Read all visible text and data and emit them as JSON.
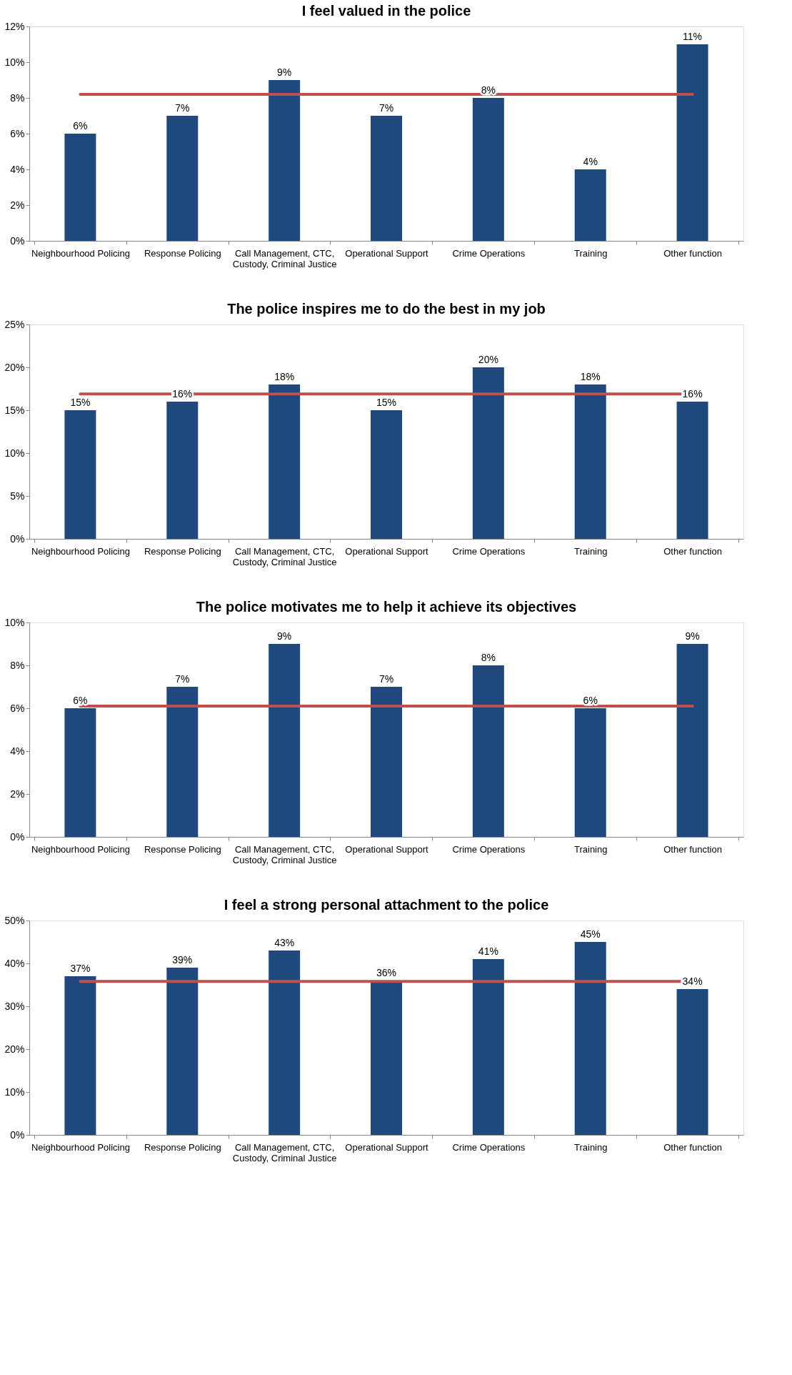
{
  "chart_data": [
    {
      "type": "bar",
      "title": "I feel valued in the police",
      "categories": [
        "Neighbourhood Policing",
        "Response Policing",
        "Call Management, CTC, Custody, Criminal Justice",
        "Operational Support",
        "Crime Operations",
        "Training",
        "Other function"
      ],
      "values": [
        6,
        7,
        9,
        7,
        8,
        4,
        11
      ],
      "value_labels": [
        "6%",
        "7%",
        "9%",
        "7%",
        "8%",
        "4%",
        "11%"
      ],
      "color": "#1f497d",
      "ylim": [
        0,
        12
      ],
      "yticks": [
        {
          "value": 0,
          "label": "0%"
        },
        {
          "value": 2,
          "label": "2%"
        },
        {
          "value": 4,
          "label": "4%"
        },
        {
          "value": 6,
          "label": "6%"
        },
        {
          "value": 8,
          "label": "8%"
        },
        {
          "value": 10,
          "label": "10%"
        },
        {
          "value": 12,
          "label": "12%"
        }
      ],
      "ref_lines": [
        {
          "axis": "y",
          "value": 8.2,
          "color": "#c0504d"
        }
      ],
      "grid": false
    },
    {
      "type": "bar",
      "title": "The police inspires me to do the best in my job",
      "categories": [
        "Neighbourhood Policing",
        "Response Policing",
        "Call Management, CTC, Custody, Criminal Justice",
        "Operational Support",
        "Crime Operations",
        "Training",
        "Other function"
      ],
      "values": [
        15,
        16,
        18,
        15,
        20,
        18,
        16
      ],
      "value_labels": [
        "15%",
        "16%",
        "18%",
        "15%",
        "20%",
        "18%",
        "16%"
      ],
      "color": "#1f497d",
      "ylim": [
        0,
        25
      ],
      "yticks": [
        {
          "value": 0,
          "label": "0%"
        },
        {
          "value": 5,
          "label": "5%"
        },
        {
          "value": 10,
          "label": "10%"
        },
        {
          "value": 15,
          "label": "15%"
        },
        {
          "value": 20,
          "label": "20%"
        },
        {
          "value": 25,
          "label": "25%"
        }
      ],
      "ref_lines": [
        {
          "axis": "y",
          "value": 16.9,
          "color": "#c0504d"
        }
      ],
      "grid": false
    },
    {
      "type": "bar",
      "title": "The police motivates me to help it achieve its objectives",
      "categories": [
        "Neighbourhood Policing",
        "Response Policing",
        "Call Management, CTC, Custody, Criminal Justice",
        "Operational Support",
        "Crime Operations",
        "Training",
        "Other function"
      ],
      "values": [
        6,
        7,
        9,
        7,
        8,
        6,
        9
      ],
      "value_labels": [
        "6%",
        "7%",
        "9%",
        "7%",
        "8%",
        "6%",
        "9%"
      ],
      "color": "#1f497d",
      "ylim": [
        0,
        10
      ],
      "yticks": [
        {
          "value": 0,
          "label": "0%"
        },
        {
          "value": 2,
          "label": "2%"
        },
        {
          "value": 4,
          "label": "4%"
        },
        {
          "value": 6,
          "label": "6%"
        },
        {
          "value": 8,
          "label": "8%"
        },
        {
          "value": 10,
          "label": "10%"
        }
      ],
      "ref_lines": [
        {
          "axis": "y",
          "value": 6.1,
          "color": "#c0504d"
        }
      ],
      "grid": false
    },
    {
      "type": "bar",
      "title": "I feel a strong personal attachment to the police",
      "categories": [
        "Neighbourhood Policing",
        "Response Policing",
        "Call Management, CTC, Custody, Criminal Justice",
        "Operational Support",
        "Crime Operations",
        "Training",
        "Other function"
      ],
      "values": [
        37,
        39,
        43,
        36,
        41,
        45,
        34
      ],
      "value_labels": [
        "37%",
        "39%",
        "43%",
        "36%",
        "41%",
        "45%",
        "34%"
      ],
      "color": "#1f497d",
      "ylim": [
        0,
        50
      ],
      "yticks": [
        {
          "value": 0,
          "label": "0%"
        },
        {
          "value": 10,
          "label": "10%"
        },
        {
          "value": 20,
          "label": "20%"
        },
        {
          "value": 30,
          "label": "30%"
        },
        {
          "value": 40,
          "label": "40%"
        },
        {
          "value": 50,
          "label": "50%"
        }
      ],
      "ref_lines": [
        {
          "axis": "y",
          "value": 35.8,
          "color": "#c0504d"
        }
      ],
      "grid": false
    }
  ]
}
